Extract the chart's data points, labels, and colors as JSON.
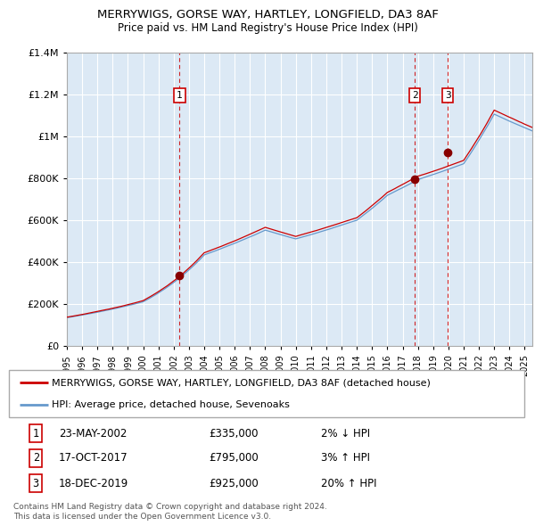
{
  "title1": "MERRYWIGS, GORSE WAY, HARTLEY, LONGFIELD, DA3 8AF",
  "title2": "Price paid vs. HM Land Registry's House Price Index (HPI)",
  "legend_line1": "MERRYWIGS, GORSE WAY, HARTLEY, LONGFIELD, DA3 8AF (detached house)",
  "legend_line2": "HPI: Average price, detached house, Sevenoaks",
  "sale1_date": "23-MAY-2002",
  "sale1_price": 335000,
  "sale1_hpi": "2% ↓ HPI",
  "sale1_year": 2002.39,
  "sale2_date": "17-OCT-2017",
  "sale2_price": 795000,
  "sale2_hpi": "3% ↑ HPI",
  "sale2_year": 2017.79,
  "sale3_date": "18-DEC-2019",
  "sale3_price": 925000,
  "sale3_hpi": "20% ↑ HPI",
  "sale3_year": 2019.96,
  "footer1": "Contains HM Land Registry data © Crown copyright and database right 2024.",
  "footer2": "This data is licensed under the Open Government Licence v3.0.",
  "hpi_color": "#6699cc",
  "price_color": "#cc0000",
  "dot_color": "#880000",
  "vline_color": "#cc0000",
  "plot_bg": "#dce9f5",
  "grid_color": "#ffffff",
  "ylim_max": 1400000,
  "ylim_min": 0,
  "start_year": 1995.0,
  "end_year": 2025.5
}
